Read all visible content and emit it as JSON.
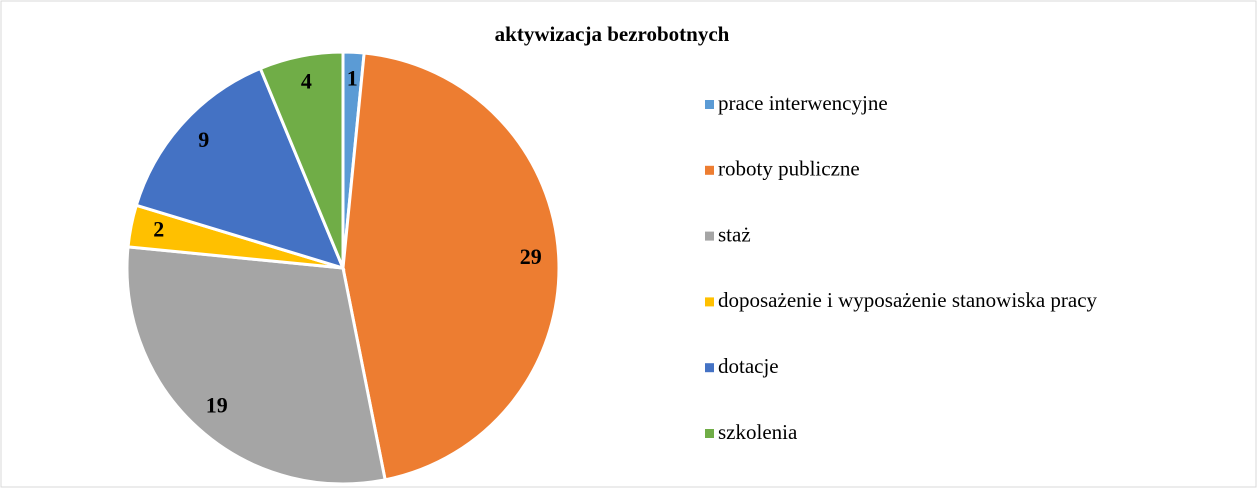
{
  "chart_data": {
    "type": "pie",
    "title": "aktywizacja bezrobotnych",
    "categories": [
      "prace interwencyjne",
      "roboty publiczne",
      "staż",
      "doposażenie i wyposażenie stanowiska pracy",
      "dotacje",
      "szkolenia"
    ],
    "values": [
      1,
      29,
      19,
      2,
      9,
      4
    ],
    "colors": [
      "#5b9bd5",
      "#ed7d31",
      "#a5a5a5",
      "#ffc000",
      "#4472c4",
      "#70ad47"
    ],
    "legend": "right"
  }
}
